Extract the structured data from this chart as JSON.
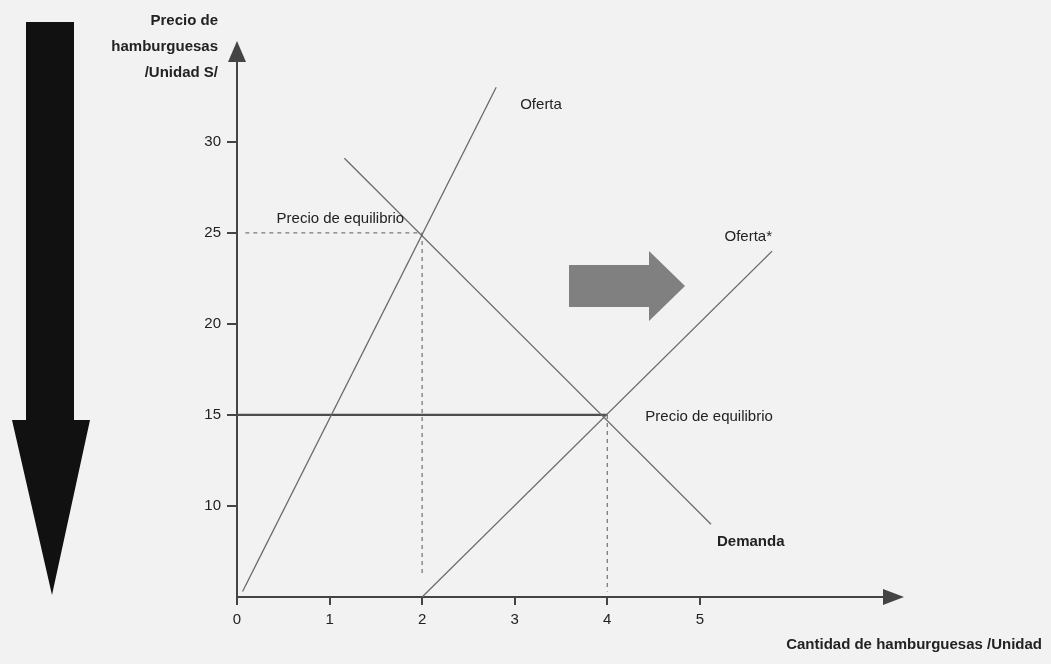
{
  "chart_data": {
    "type": "line",
    "xlabel": "Cantidad de hamburguesas /Unidad",
    "ylabel": "Precio de hamburguesas /Unidad S/",
    "xlim": [
      0,
      7
    ],
    "xticks": [
      0,
      1,
      2,
      3,
      4,
      5
    ],
    "ylim": [
      5,
      34.5
    ],
    "yticks": [
      10,
      15,
      20,
      25,
      30
    ],
    "grid": false,
    "legend": false,
    "marker": "none",
    "series": [
      {
        "name": "Oferta",
        "x": [
          0.06,
          2.8
        ],
        "values": [
          5.3,
          33
        ],
        "color": "#6b6b6b"
      },
      {
        "name": "Demanda",
        "x": [
          1.16,
          5.12
        ],
        "values": [
          29.1,
          9
        ],
        "color": "#6b6b6b"
      },
      {
        "name": "Oferta*",
        "x": [
          2,
          5.78
        ],
        "values": [
          5,
          24
        ],
        "color": "#6b6b6b"
      },
      {
        "x": [
          0,
          4
        ],
        "values": [
          15,
          15
        ],
        "color": "#4d4d4d"
      },
      {
        "x": [
          0.09,
          2
        ],
        "values": [
          25,
          25
        ],
        "color": "#7a7a7a",
        "line_style": "dashed"
      },
      {
        "x": [
          2,
          2
        ],
        "values": [
          25,
          6.3
        ],
        "color": "#7a7a7a",
        "line_style": "dashed"
      },
      {
        "x": [
          4,
          4
        ],
        "values": [
          15,
          5.3
        ],
        "color": "#7a7a7a",
        "line_style": "dashed"
      }
    ],
    "annotations": [
      {
        "text": "Precio de equilibrio",
        "x": 2,
        "y": 25
      },
      {
        "text": "Precio de equilibrio",
        "x": 4,
        "y": 15
      }
    ]
  }
}
